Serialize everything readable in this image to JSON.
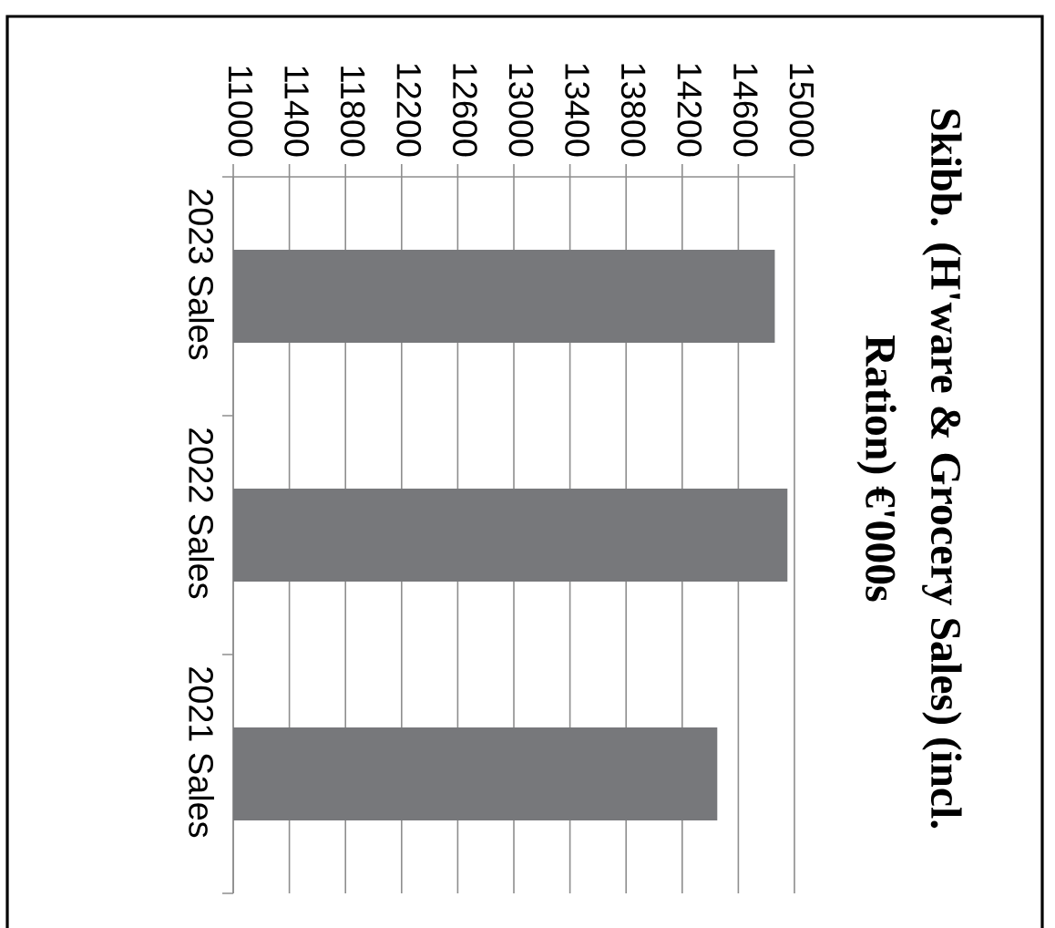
{
  "chart_data": {
    "type": "bar",
    "orientation": "horizontal",
    "title": "Skibb.  (H'ware & Grocery Sales) (incl. Ration) €'000s",
    "categories": [
      "2023 Sales",
      "2022 Sales",
      "2021 Sales"
    ],
    "values": [
      14860,
      14950,
      14450
    ],
    "color": "#77787b",
    "xlim": [
      11000,
      15000
    ],
    "xticks": [
      11000,
      11400,
      11800,
      12200,
      12600,
      13000,
      13400,
      13800,
      14200,
      14600,
      15000
    ],
    "grid": "x"
  }
}
